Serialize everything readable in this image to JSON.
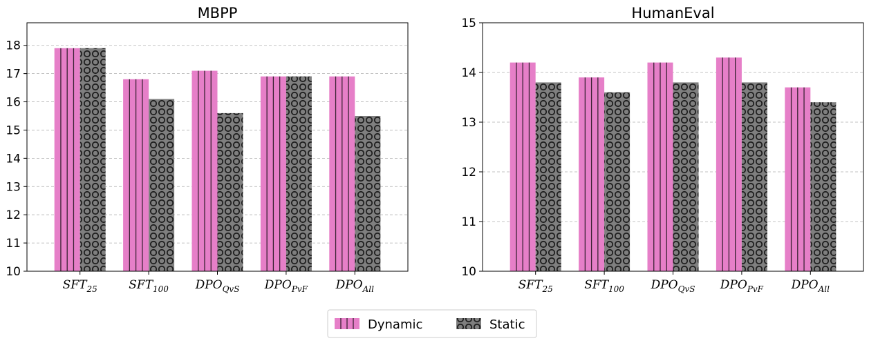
{
  "chart_data": [
    {
      "type": "bar",
      "title": "MBPP",
      "categories": [
        "SFT_25",
        "SFT_100",
        "DPO_QvS",
        "DPO_PvF",
        "DPO_All"
      ],
      "category_labels": [
        {
          "main": "SFT",
          "sub": "25"
        },
        {
          "main": "SFT",
          "sub": "100"
        },
        {
          "main": "DPO",
          "sub": "QvS"
        },
        {
          "main": "DPO",
          "sub": "PvF"
        },
        {
          "main": "DPO",
          "sub": "All"
        }
      ],
      "series": [
        {
          "name": "Dynamic",
          "values": [
            17.9,
            16.8,
            17.1,
            16.9,
            16.9
          ]
        },
        {
          "name": "Static",
          "values": [
            17.9,
            16.1,
            15.6,
            16.9,
            15.5
          ]
        }
      ],
      "ylim": [
        10,
        18.8
      ],
      "yticks": [
        "10",
        "11",
        "12",
        "13",
        "14",
        "15",
        "16",
        "17",
        "18"
      ],
      "grid": true
    },
    {
      "type": "bar",
      "title": "HumanEval",
      "categories": [
        "SFT_25",
        "SFT_100",
        "DPO_QvS",
        "DPO_PvF",
        "DPO_All"
      ],
      "category_labels": [
        {
          "main": "SFT",
          "sub": "25"
        },
        {
          "main": "SFT",
          "sub": "100"
        },
        {
          "main": "DPO",
          "sub": "QvS"
        },
        {
          "main": "DPO",
          "sub": "PvF"
        },
        {
          "main": "DPO",
          "sub": "All"
        }
      ],
      "series": [
        {
          "name": "Dynamic",
          "values": [
            14.2,
            13.9,
            14.2,
            14.3,
            13.7
          ]
        },
        {
          "name": "Static",
          "values": [
            13.8,
            13.6,
            13.8,
            13.8,
            13.4
          ]
        }
      ],
      "ylim": [
        10,
        15
      ],
      "yticks": [
        "10",
        "11",
        "12",
        "13",
        "14",
        "15"
      ],
      "grid": true
    }
  ],
  "legend": {
    "position": "bottom-center",
    "entries": [
      "Dynamic",
      "Static"
    ]
  },
  "colors": {
    "dynamic": "#e67fc8",
    "dynamic_stripe": "#3a2233",
    "static": "#7f7f7f",
    "static_ring": "#1f1f1f"
  }
}
